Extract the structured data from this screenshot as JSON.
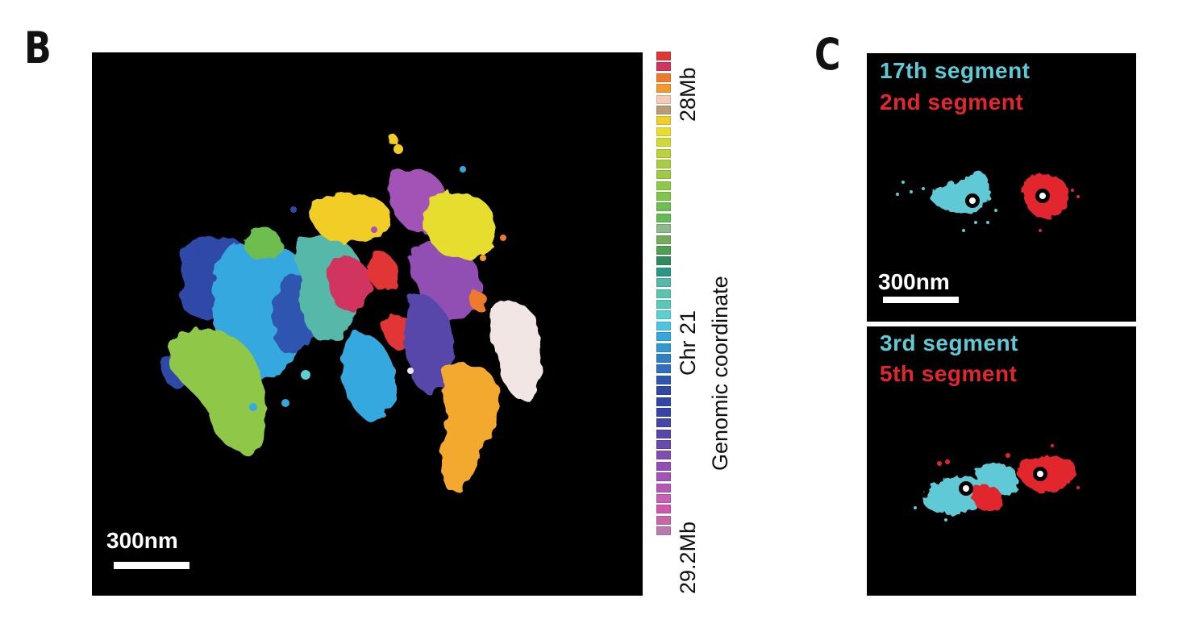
{
  "panel_b": {
    "letter": "B",
    "scale_label": "300nm",
    "colorbar": {
      "colors": [
        "#e23636",
        "#d1345f",
        "#ee7a2d",
        "#f3982f",
        "#f7c9b7",
        "#b89a78",
        "#f2cd27",
        "#e6dd2f",
        "#cfd93a",
        "#bcd23c",
        "#a7ce42",
        "#9ccc45",
        "#8fc748",
        "#7fc44b",
        "#6dbe4f",
        "#63bb53",
        "#8fb88c",
        "#73aa5b",
        "#4e9f50",
        "#2f8a5f",
        "#2a9786",
        "#56b8a8",
        "#5cc3ae",
        "#58c9b8",
        "#5ad0d2",
        "#4fc4e2",
        "#35a9df",
        "#3596d4",
        "#2f7fc7",
        "#2f6fbd",
        "#2e55b0",
        "#2f48a8",
        "#3146a6",
        "#3743a6",
        "#4645a8",
        "#5846ab",
        "#6b48ae",
        "#7f4eb0",
        "#914fb4",
        "#a253b6",
        "#b658b6",
        "#c861b6",
        "#cf57ac",
        "#c866a6",
        "#b97bac"
      ],
      "top_label": "28Mb",
      "mid_label": "Chr 21",
      "bottom_label": "29.2Mb"
    },
    "axis_label": "Genomic coordinate"
  },
  "panel_c": {
    "letter": "C",
    "top": {
      "label_cyan": "17th segment",
      "label_red": "2nd segment",
      "scale_label": "300nm"
    },
    "bottom": {
      "label_cyan": "3rd segment",
      "label_red": "5th segment"
    },
    "colors": {
      "cyan": "#5fc9d6",
      "red": "#e2262f"
    }
  }
}
